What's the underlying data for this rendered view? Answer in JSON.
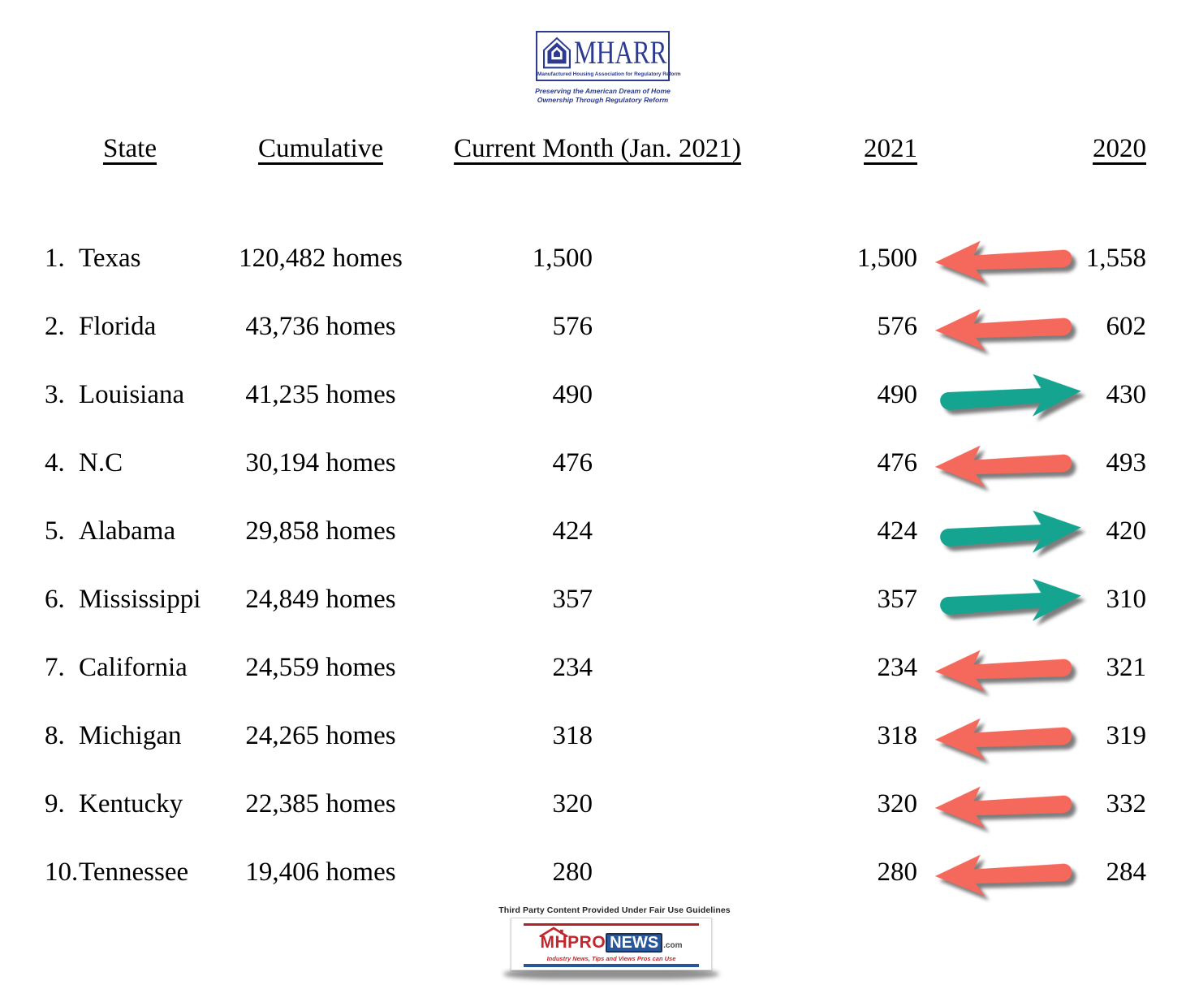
{
  "logo_mharr": {
    "acronym": "MHARR",
    "full_name": "Manufactured Housing Association for Regulatory Reform",
    "slogan_line1": "Preserving the American Dream of Home",
    "slogan_line2": "Ownership Through Regulatory Reform"
  },
  "table": {
    "headers": {
      "state": "State",
      "cumulative": "Cumulative",
      "current_month": "Current Month (Jan. 2021)",
      "y2021": "2021",
      "y2020": "2020"
    },
    "rows": [
      {
        "rank": "1.",
        "state": "Texas",
        "cumulative": "120,482 homes",
        "current": "1,500",
        "y2021": "1,500",
        "y2020": "1,558",
        "trend": "down"
      },
      {
        "rank": "2.",
        "state": "Florida",
        "cumulative": "43,736 homes",
        "current": "576",
        "y2021": "576",
        "y2020": "602",
        "trend": "down"
      },
      {
        "rank": "3.",
        "state": "Louisiana",
        "cumulative": "41,235 homes",
        "current": "490",
        "y2021": "490",
        "y2020": "430",
        "trend": "up"
      },
      {
        "rank": "4.",
        "state": "N.C",
        "cumulative": "30,194 homes",
        "current": "476",
        "y2021": "476",
        "y2020": "493",
        "trend": "down"
      },
      {
        "rank": "5.",
        "state": "Alabama",
        "cumulative": "29,858 homes",
        "current": "424",
        "y2021": "424",
        "y2020": "420",
        "trend": "up"
      },
      {
        "rank": "6.",
        "state": "Mississippi",
        "cumulative": "24,849 homes",
        "current": "357",
        "y2021": "357",
        "y2020": "310",
        "trend": "up"
      },
      {
        "rank": "7.",
        "state": "California",
        "cumulative": "24,559 homes",
        "current": "234",
        "y2021": "234",
        "y2020": "321",
        "trend": "down"
      },
      {
        "rank": "8.",
        "state": "Michigan",
        "cumulative": "24,265 homes",
        "current": "318",
        "y2021": "318",
        "y2020": "319",
        "trend": "down"
      },
      {
        "rank": "9.",
        "state": "Kentucky",
        "cumulative": "22,385 homes",
        "current": "320",
        "y2021": "320",
        "y2020": "332",
        "trend": "down"
      },
      {
        "rank": "10.",
        "state": "Tennessee",
        "cumulative": "19,406 homes",
        "current": "280",
        "y2021": "280",
        "y2020": "284",
        "trend": "down"
      }
    ]
  },
  "footer": {
    "fair_use": "Third Party Content Provided Under Fair Use Guidelines",
    "logo": {
      "mhpro": "MHPRO",
      "news": "NEWS",
      "dotcom": ".com",
      "tagline": "Industry News, Tips and Views Pros can Use"
    }
  },
  "colors": {
    "arrow_decrease": "#f4695c",
    "arrow_increase": "#14a48f",
    "mharr_blue": "#2c3a90",
    "news_red": "#c3262b",
    "news_blue": "#27569b"
  }
}
